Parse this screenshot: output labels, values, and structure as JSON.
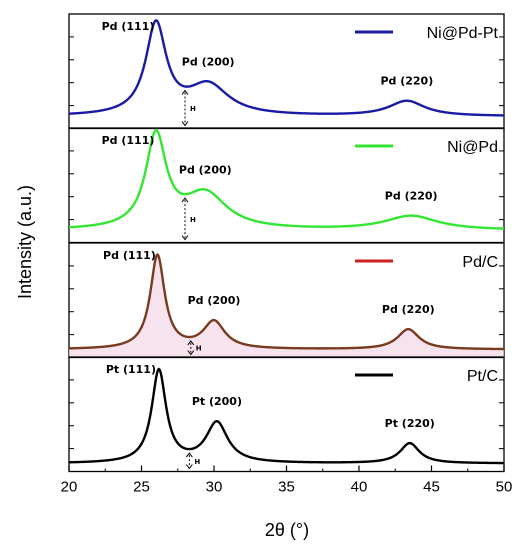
{
  "chart_data": {
    "type": "line",
    "title": "",
    "xlabel": "2θ (°)",
    "ylabel": "Intensity (a.u.)",
    "xlim": [
      20,
      50
    ],
    "x_ticks": [
      20,
      25,
      30,
      35,
      40,
      45,
      50
    ],
    "y_tick_labels": "none",
    "layout": "four vertically stacked panels sharing the x axis",
    "panels": [
      {
        "series": {
          "name": "Ni@Pd-Pt",
          "color": "#1a1aa6"
        },
        "legend_position": "top-right",
        "peaks": [
          {
            "label": "Pd (111)",
            "x": 26.0,
            "height": 0.9,
            "width": 0.85
          },
          {
            "label": "Pd (200)",
            "x": 29.6,
            "height": 0.3,
            "width": 1.7
          },
          {
            "label": "Pd (220)",
            "x": 43.3,
            "height": 0.15,
            "width": 1.5
          }
        ],
        "baseline": 0.08,
        "h_marker": {
          "label": "H",
          "x": 28.0
        }
      },
      {
        "series": {
          "name": "Ni@Pd",
          "color": "#33e633"
        },
        "legend_position": "top-right",
        "peaks": [
          {
            "label": "Pd (111)",
            "x": 26.0,
            "height": 0.92,
            "width": 0.85
          },
          {
            "label": "Pd (200)",
            "x": 29.4,
            "height": 0.35,
            "width": 1.8
          },
          {
            "label": "Pd (220)",
            "x": 43.6,
            "height": 0.14,
            "width": 2.2
          }
        ],
        "baseline": 0.08,
        "h_marker": {
          "label": "H",
          "x": 28.0
        }
      },
      {
        "series": {
          "name": "Pd/C",
          "color": "#cc1f1f",
          "line_color": "#7a3a1e"
        },
        "legend_position": "top-right",
        "peaks": [
          {
            "label": "Pd (111)",
            "x": 26.1,
            "height": 0.93,
            "width": 0.6
          },
          {
            "label": "Pd (200)",
            "x": 30.0,
            "height": 0.27,
            "width": 0.9
          },
          {
            "label": "Pd (220)",
            "x": 43.4,
            "height": 0.2,
            "width": 0.9
          }
        ],
        "baseline": 0.04,
        "h_marker": {
          "label": "H",
          "x": 28.4
        }
      },
      {
        "series": {
          "name": "Pt/C",
          "color": "#000000"
        },
        "legend_position": "top-right",
        "peaks": [
          {
            "label": "Pt (111)",
            "x": 26.2,
            "height": 0.92,
            "width": 0.6
          },
          {
            "label": "Pt (200)",
            "x": 30.2,
            "height": 0.4,
            "width": 0.9
          },
          {
            "label": "Pt (220)",
            "x": 43.5,
            "height": 0.2,
            "width": 0.8
          }
        ],
        "baseline": 0.04,
        "h_marker": {
          "label": "H",
          "x": 28.3
        }
      }
    ]
  }
}
